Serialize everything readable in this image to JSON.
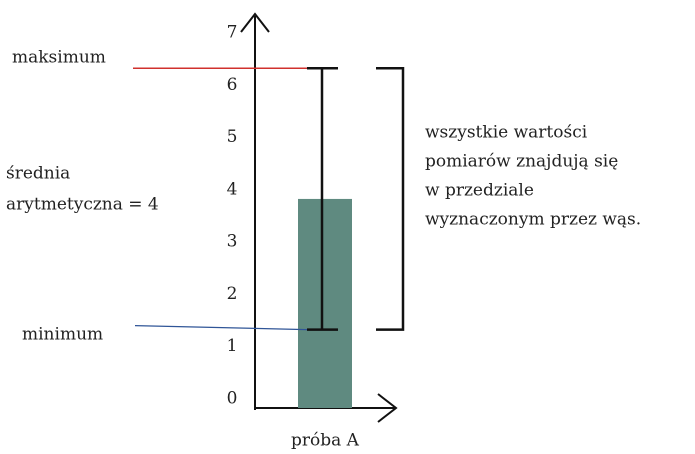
{
  "chart_data": {
    "type": "bar",
    "categories": [
      "próba A"
    ],
    "values": [
      4
    ],
    "min": [
      1.5
    ],
    "max": [
      6.5
    ],
    "color": "#5f8a80",
    "ylim": [
      0,
      7.5
    ],
    "yticks": [
      0,
      1,
      2,
      3,
      4,
      5,
      6,
      7
    ],
    "annotations": {
      "max_label": "maksimum",
      "min_label": "minimum",
      "mean_label": [
        "średnia",
        "arytmetyczna = 4"
      ],
      "range_note": [
        "wszystkie wartości",
        "pomiarów znajdują się",
        "w przedziale",
        "wyznaczonym przez wąs."
      ]
    }
  }
}
